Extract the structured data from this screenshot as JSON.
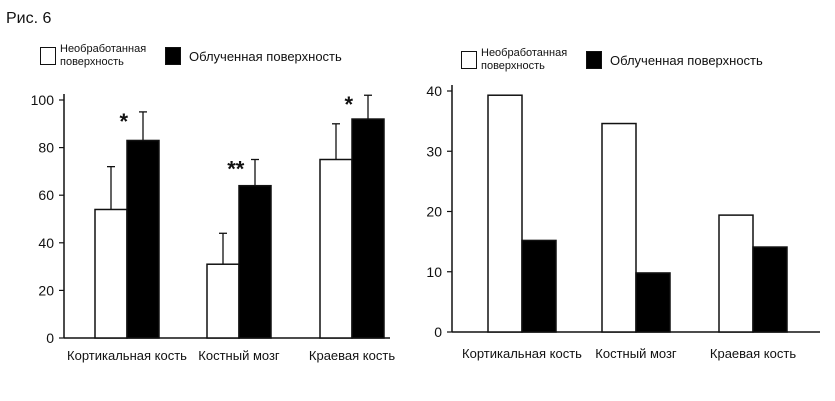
{
  "figure": {
    "title": "Рис. 6"
  },
  "legend": {
    "open_label": "Необработанная поверхность",
    "solid_label": "Облученная поверхность"
  },
  "chart_data": [
    {
      "type": "bar",
      "categories": [
        "Кортикальная кость",
        "Костный мозг",
        "Краевая кость"
      ],
      "series": [
        {
          "name": "Необработанная поверхность",
          "values": [
            54,
            31,
            75
          ],
          "error": [
            18,
            13,
            15
          ]
        },
        {
          "name": "Облученная поверхность",
          "values": [
            83,
            64,
            92
          ],
          "error": [
            12,
            11,
            10
          ]
        }
      ],
      "annotations": [
        "*",
        "**",
        "*"
      ],
      "ylim": [
        0,
        100
      ],
      "yticks": [
        0,
        20,
        40,
        60,
        80,
        100
      ],
      "grid": false,
      "legend_position": "top-left"
    },
    {
      "type": "bar",
      "categories": [
        "Кортикальная кость",
        "Костный мозг",
        "Краевая кость"
      ],
      "series": [
        {
          "name": "Необработанная поверхность",
          "values": [
            39.3,
            34.6,
            19.4
          ]
        },
        {
          "name": "Облученная поверхность",
          "values": [
            15.2,
            9.8,
            14.1
          ]
        }
      ],
      "ylim": [
        0,
        40
      ],
      "yticks": [
        0,
        10,
        20,
        30,
        40
      ],
      "grid": false,
      "legend_position": "top-left"
    }
  ]
}
